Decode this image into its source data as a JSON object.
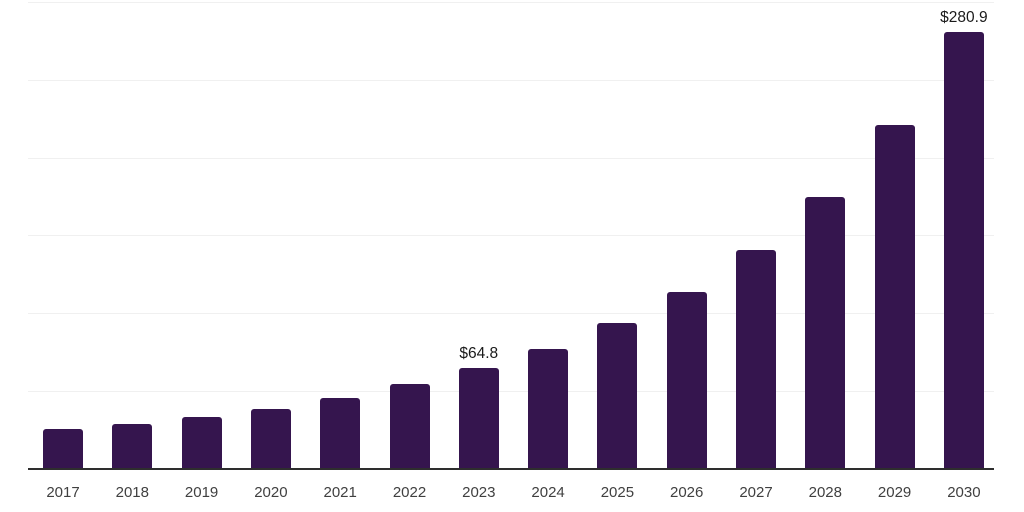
{
  "chart_data": {
    "type": "bar",
    "title": "",
    "xlabel": "",
    "ylabel": "",
    "categories": [
      "2017",
      "2018",
      "2019",
      "2020",
      "2021",
      "2022",
      "2023",
      "2024",
      "2025",
      "2026",
      "2027",
      "2028",
      "2029",
      "2030"
    ],
    "values": [
      25.4,
      28.6,
      33.1,
      38.3,
      45.4,
      54.5,
      64.8,
      77.2,
      93.7,
      113.6,
      140.5,
      174.8,
      220.9,
      280.9
    ],
    "data_labels": {
      "6": "$64.8",
      "13": "$280.9"
    },
    "ylim": [
      0,
      300
    ],
    "gridline_step": 50,
    "grid": true,
    "legend_position": "none",
    "y_axis_tick_labels_visible": false,
    "bar_color": "#35154E",
    "gridline_color": "#f0f0f0",
    "axis_color": "#2e2e2e",
    "x_label_color": "#404040",
    "data_label_color": "#1a1a1a",
    "background_color": "#ffffff"
  }
}
